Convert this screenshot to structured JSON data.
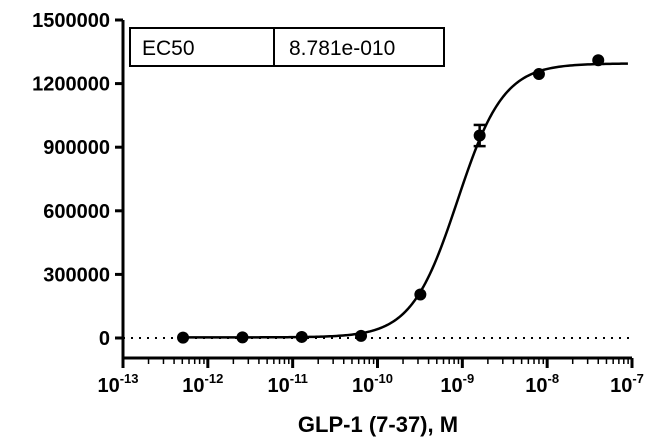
{
  "chart_data": {
    "type": "scatter",
    "xlabel": "GLP-1 (7-37), M",
    "ylabel": "",
    "xscale": "log",
    "xlim": [
      1e-13,
      1e-07
    ],
    "ylim": [
      0,
      1500000
    ],
    "y_ticks": [
      "0",
      "300000",
      "600000",
      "900000",
      "1200000",
      "1500000"
    ],
    "x_ticks": [
      {
        "base": "10",
        "exp": "-13"
      },
      {
        "base": "10",
        "exp": "-12"
      },
      {
        "base": "10",
        "exp": "-11"
      },
      {
        "base": "10",
        "exp": "-10"
      },
      {
        "base": "10",
        "exp": "-9"
      },
      {
        "base": "10",
        "exp": "-8"
      },
      {
        "base": "10",
        "exp": "-7"
      }
    ],
    "points": [
      {
        "x": 5.1e-13,
        "y": 2000
      },
      {
        "x": 2.56e-12,
        "y": 3000
      },
      {
        "x": 1.28e-11,
        "y": 5000
      },
      {
        "x": 6.4e-11,
        "y": 10000
      },
      {
        "x": 3.2e-10,
        "y": 205000
      },
      {
        "x": 1.6e-09,
        "y": 955000,
        "err": 50000
      },
      {
        "x": 8e-09,
        "y": 1245000
      },
      {
        "x": 4e-08,
        "y": 1310000
      }
    ],
    "fit": {
      "bottom": 3000,
      "top": 1295000,
      "ec50": 8.781e-10,
      "hill": 1.6
    },
    "baseline_y": 0,
    "grid": false,
    "legend_table": {
      "label": "EC50",
      "value": "8.781e-010",
      "placement": "top-left"
    }
  }
}
